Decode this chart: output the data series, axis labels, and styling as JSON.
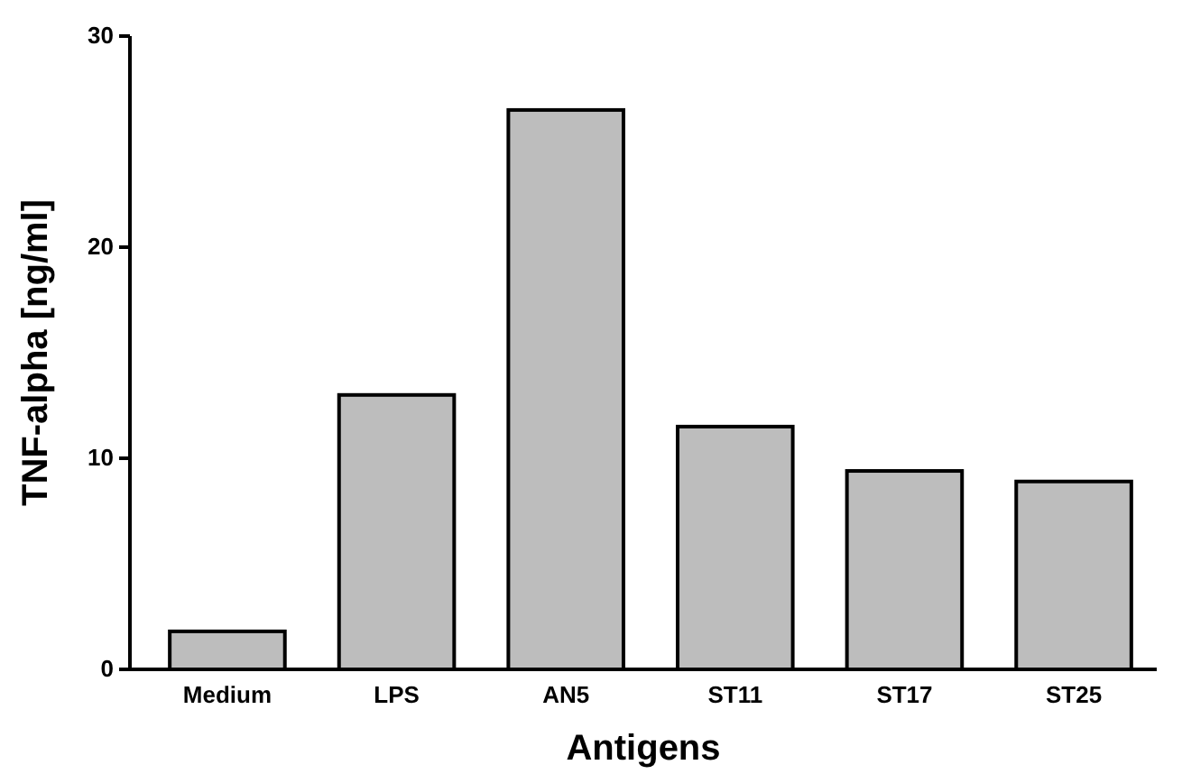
{
  "chart_data": {
    "type": "bar",
    "xlabel": "Antigens",
    "ylabel": "TNF-alpha [ng/ml]",
    "categories": [
      "Medium",
      "LPS",
      "AN5",
      "ST11",
      "ST17",
      "ST25"
    ],
    "values": [
      1.8,
      13,
      26.5,
      11.5,
      9.4,
      8.9
    ],
    "color": "#bdbdbd",
    "ylim": [
      0,
      30
    ],
    "yticks": [
      0,
      10,
      20,
      30
    ],
    "grid": false
  }
}
